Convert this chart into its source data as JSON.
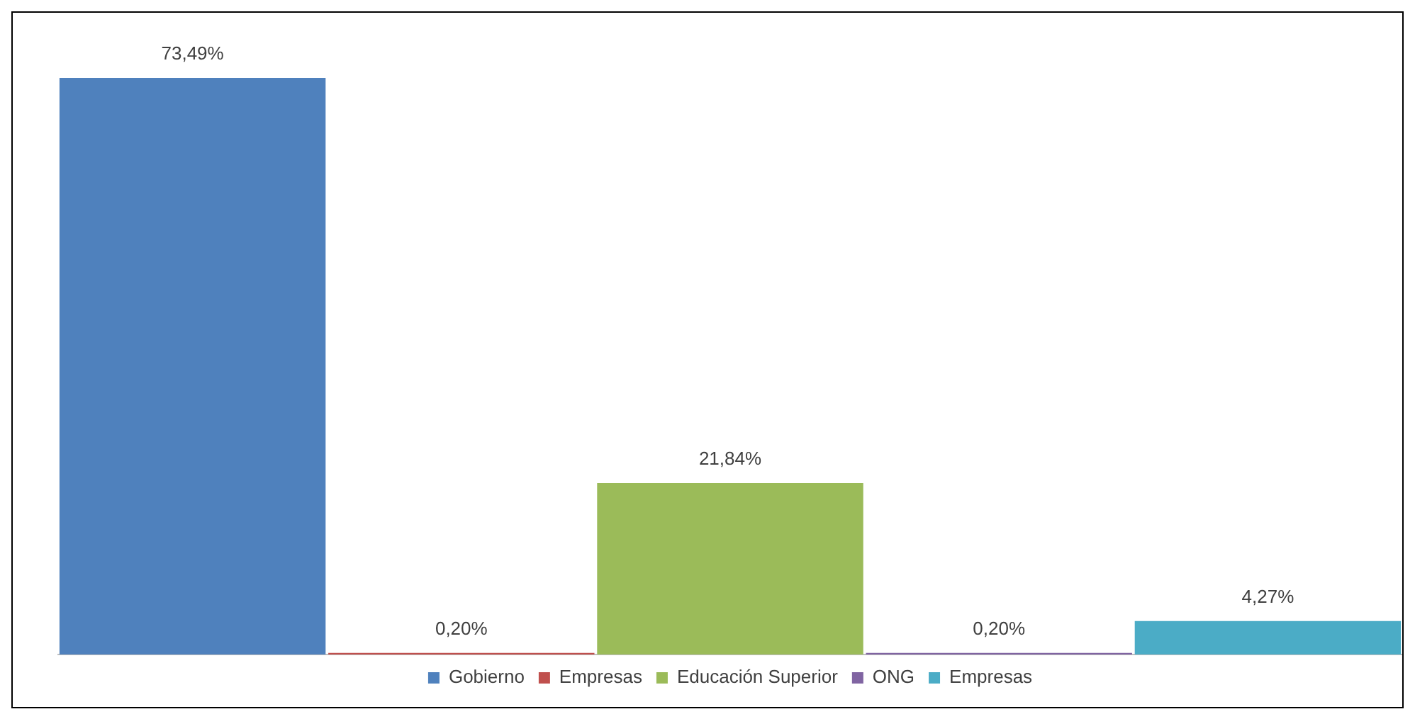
{
  "chart_data": {
    "type": "bar",
    "categories": [
      null
    ],
    "series": [
      {
        "name": "Gobierno",
        "color": "#4f81bd",
        "values": [
          73.49
        ],
        "value_labels": [
          "73,49%"
        ]
      },
      {
        "name": "Empresas",
        "color": "#c0504d",
        "values": [
          0.2
        ],
        "value_labels": [
          "0,20%"
        ]
      },
      {
        "name": "Educación Superior",
        "color": "#9bbb59",
        "values": [
          21.84
        ],
        "value_labels": [
          "21,84%"
        ]
      },
      {
        "name": "ONG",
        "color": "#8064a2",
        "values": [
          0.2
        ],
        "value_labels": [
          "0,20%"
        ]
      },
      {
        "name": "Empresas",
        "color": "#4bacc6",
        "values": [
          4.27
        ],
        "value_labels": [
          "4,27%"
        ]
      }
    ],
    "legend": "bottom",
    "grid": false,
    "tick_labels": false
  }
}
